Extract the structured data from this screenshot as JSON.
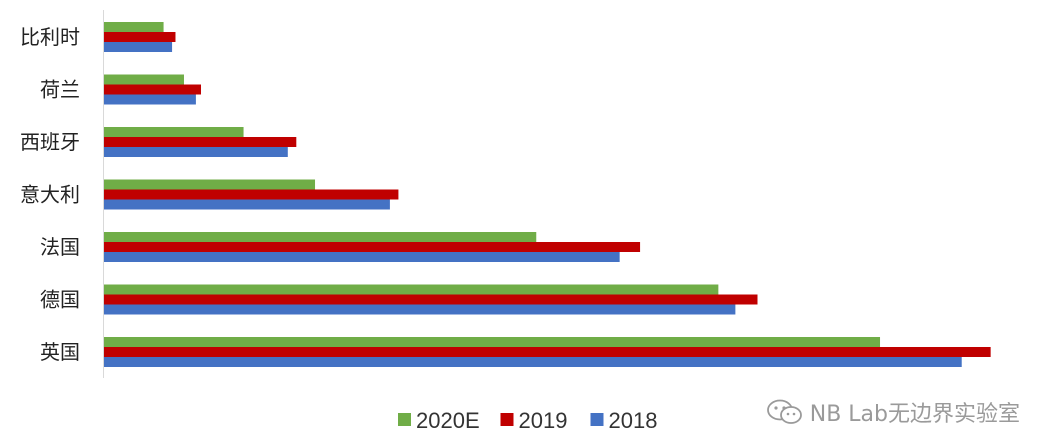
{
  "chart_data": {
    "type": "bar",
    "orientation": "horizontal",
    "categories": [
      "比利时",
      "荷兰",
      "西班牙",
      "意大利",
      "法国",
      "德国",
      "英国"
    ],
    "series": [
      {
        "name": "2020E",
        "color": "#70AD47",
        "values": [
          3.5,
          4.7,
          8.2,
          12.4,
          25.4,
          36.1,
          45.6
        ]
      },
      {
        "name": "2019",
        "color": "#C00000",
        "values": [
          4.2,
          5.7,
          11.3,
          17.3,
          31.5,
          38.4,
          52.1
        ]
      },
      {
        "name": "2018",
        "color": "#4472C4",
        "values": [
          4.0,
          5.4,
          10.8,
          16.8,
          30.3,
          37.1,
          50.4
        ]
      }
    ],
    "xlim": [
      0,
      55
    ],
    "grid": false,
    "legend": "bottom"
  },
  "watermark": {
    "text": "NB Lab无边界实验室",
    "icon": "wechat-icon"
  }
}
